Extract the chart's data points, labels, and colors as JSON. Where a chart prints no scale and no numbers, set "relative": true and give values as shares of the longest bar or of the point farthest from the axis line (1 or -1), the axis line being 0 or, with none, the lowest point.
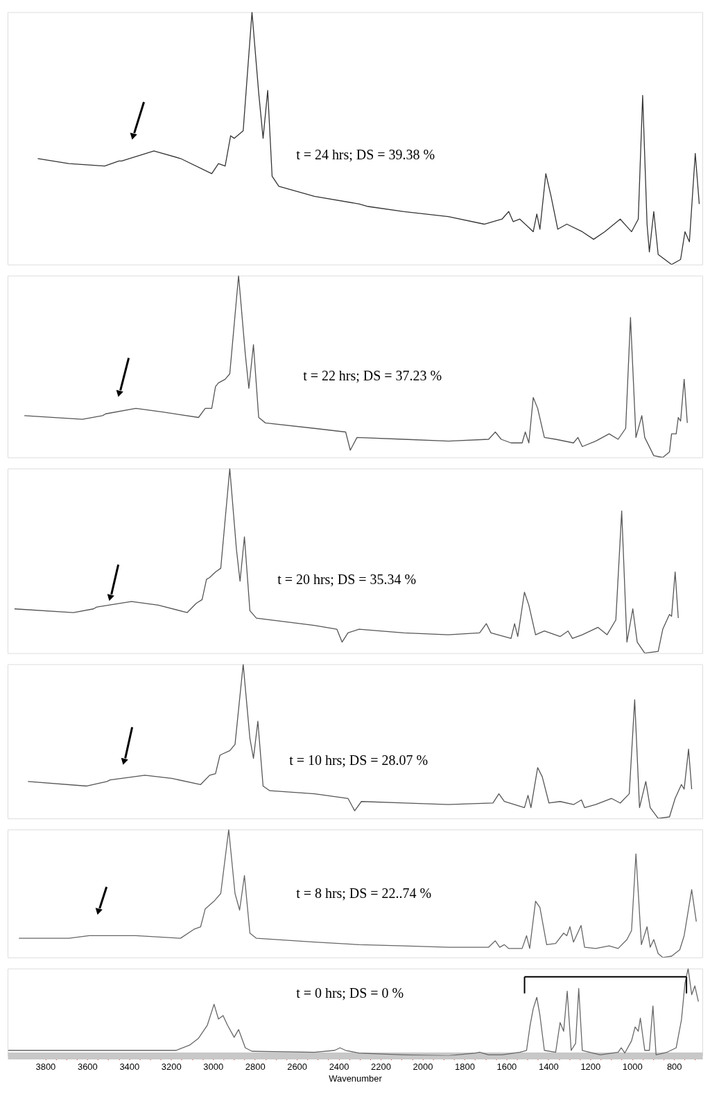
{
  "chart_data": [
    {
      "type": "line",
      "relative": true,
      "xlim": [
        3980,
        665
      ],
      "tick_labels": false,
      "annotations": [
        "t = 24 hrs; DS = 39.38 %"
      ],
      "x": [
        3836,
        3687,
        3517,
        3449,
        3436,
        3282,
        3155,
        3006,
        2974,
        2942,
        2916,
        2899,
        2856,
        2814,
        2782,
        2761,
        2739,
        2718,
        2686,
        2516,
        2303,
        2260,
        2090,
        1877,
        1706,
        1621,
        1589,
        1568,
        1536,
        1472,
        1455,
        1440,
        1412,
        1387,
        1355,
        1312,
        1238,
        1184,
        1131,
        1057,
        1025,
        1003,
        971,
        950,
        929,
        918,
        897,
        876,
        812,
        769,
        748,
        727,
        699,
        680
      ],
      "series": [
        {
          "color": "#333333",
          "values": [
            0.42,
            0.4,
            0.39,
            0.41,
            0.41,
            0.45,
            0.42,
            0.36,
            0.4,
            0.39,
            0.51,
            0.5,
            0.53,
            1,
            0.68,
            0.5,
            0.69,
            0.35,
            0.31,
            0.27,
            0.24,
            0.23,
            0.21,
            0.19,
            0.16,
            0.18,
            0.21,
            0.17,
            0.18,
            0.13,
            0.2,
            0.14,
            0.36,
            0.27,
            0.14,
            0.16,
            0.13,
            0.1,
            0.13,
            0.18,
            0.15,
            0.13,
            0.18,
            0.67,
            0.16,
            0.05,
            0.21,
            0.04,
            0,
            0.02,
            0.13,
            0.09,
            0.44,
            0.24
          ]
        }
      ]
    },
    {
      "type": "line",
      "relative": true,
      "xlim": [
        3980,
        665
      ],
      "tick_labels": false,
      "annotations": [
        "t = 22 hrs; DS = 37.23 %"
      ],
      "x": [
        3900,
        3623,
        3527,
        3512,
        3368,
        3240,
        3069,
        3037,
        3006,
        2988,
        2974,
        2942,
        2920,
        2878,
        2846,
        2829,
        2807,
        2782,
        2750,
        2516,
        2367,
        2345,
        2313,
        2090,
        1877,
        1685,
        1653,
        1625,
        1578,
        1525,
        1510,
        1493,
        1472,
        1451,
        1419,
        1365,
        1280,
        1259,
        1238,
        1174,
        1110,
        1067,
        1031,
        1008,
        982,
        954,
        940,
        897,
        854,
        822,
        812,
        790,
        780,
        769,
        752,
        737
      ],
      "series": [
        {
          "color": "#555555",
          "values": [
            0.23,
            0.21,
            0.23,
            0.24,
            0.27,
            0.25,
            0.22,
            0.27,
            0.27,
            0.39,
            0.41,
            0.43,
            0.46,
            1,
            0.57,
            0.38,
            0.62,
            0.22,
            0.19,
            0.16,
            0.14,
            0.04,
            0.11,
            0.1,
            0.09,
            0.1,
            0.14,
            0.1,
            0.08,
            0.08,
            0.14,
            0.08,
            0.33,
            0.27,
            0.11,
            0.1,
            0.08,
            0.11,
            0.06,
            0.09,
            0.13,
            0.1,
            0.16,
            0.77,
            0.11,
            0.23,
            0.11,
            0.01,
            0,
            0.03,
            0.13,
            0.13,
            0.22,
            0.2,
            0.43,
            0.19
          ]
        }
      ]
    },
    {
      "type": "line",
      "relative": true,
      "xlim": [
        3980,
        665
      ],
      "tick_labels": false,
      "annotations": [
        "t = 20 hrs; DS = 35.34 %"
      ],
      "x": [
        3947,
        3666,
        3570,
        3555,
        3389,
        3261,
        3123,
        3080,
        3052,
        3031,
        3016,
        2988,
        2963,
        2920,
        2888,
        2871,
        2850,
        2824,
        2793,
        2516,
        2409,
        2384,
        2356,
        2303,
        2090,
        1877,
        1728,
        1696,
        1674,
        1578,
        1561,
        1546,
        1514,
        1493,
        1461,
        1419,
        1344,
        1306,
        1285,
        1238,
        1163,
        1120,
        1078,
        1050,
        1025,
        997,
        976,
        940,
        876,
        854,
        822,
        812,
        795,
        780
      ],
      "series": [
        {
          "color": "#555555",
          "values": [
            0.24,
            0.22,
            0.24,
            0.25,
            0.28,
            0.26,
            0.22,
            0.27,
            0.29,
            0.4,
            0.41,
            0.44,
            0.46,
            1,
            0.56,
            0.39,
            0.63,
            0.23,
            0.19,
            0.15,
            0.13,
            0.06,
            0.11,
            0.13,
            0.11,
            0.1,
            0.11,
            0.16,
            0.11,
            0.08,
            0.16,
            0.09,
            0.33,
            0.26,
            0.1,
            0.12,
            0.09,
            0.12,
            0.08,
            0.1,
            0.14,
            0.1,
            0.18,
            0.77,
            0.06,
            0.24,
            0.06,
            0,
            0.01,
            0.13,
            0.21,
            0.2,
            0.44,
            0.19
          ]
        }
      ]
    },
    {
      "type": "line",
      "relative": true,
      "xlim": [
        3980,
        665
      ],
      "tick_labels": false,
      "annotations": [
        "t = 10 hrs; DS = 28.07 %"
      ],
      "x": [
        3883,
        3602,
        3506,
        3491,
        3325,
        3197,
        3059,
        3016,
        2988,
        2967,
        2952,
        2920,
        2895,
        2856,
        2824,
        2807,
        2786,
        2761,
        2729,
        2516,
        2356,
        2324,
        2292,
        2090,
        1877,
        1664,
        1636,
        1610,
        1514,
        1497,
        1483,
        1451,
        1429,
        1397,
        1344,
        1280,
        1242,
        1227,
        1174,
        1099,
        1057,
        1014,
        988,
        965,
        935,
        914,
        876,
        822,
        795,
        765,
        752,
        731,
        716
      ],
      "series": [
        {
          "color": "#555555",
          "values": [
            0.24,
            0.21,
            0.24,
            0.25,
            0.28,
            0.26,
            0.22,
            0.28,
            0.29,
            0.41,
            0.42,
            0.44,
            0.48,
            1,
            0.52,
            0.39,
            0.63,
            0.21,
            0.18,
            0.16,
            0.13,
            0.05,
            0.11,
            0.1,
            0.09,
            0.1,
            0.16,
            0.11,
            0.07,
            0.15,
            0.07,
            0.33,
            0.27,
            0.1,
            0.11,
            0.09,
            0.12,
            0.07,
            0.09,
            0.13,
            0.1,
            0.16,
            0.77,
            0.07,
            0.24,
            0.07,
            0,
            0.01,
            0.13,
            0.22,
            0.19,
            0.45,
            0.19
          ]
        }
      ]
    },
    {
      "type": "line",
      "relative": true,
      "xlim": [
        3980,
        665
      ],
      "tick_labels": false,
      "annotations": [
        "t = 8 hrs; DS = 22..74 %"
      ],
      "x": [
        3926,
        3687,
        3591,
        3581,
        3368,
        3155,
        3091,
        3059,
        3037,
        3023,
        2995,
        2963,
        2925,
        2895,
        2873,
        2850,
        2824,
        2793,
        2516,
        2303,
        2090,
        1877,
        1685,
        1653,
        1632,
        1610,
        1589,
        1525,
        1504,
        1489,
        1461,
        1440,
        1408,
        1365,
        1327,
        1312,
        1297,
        1280,
        1244,
        1227,
        1174,
        1110,
        1067,
        1025,
        1003,
        982,
        956,
        929,
        914,
        897,
        876,
        854,
        812,
        773,
        752,
        716,
        694
      ],
      "series": [
        {
          "color": "#666666",
          "values": [
            0.15,
            0.15,
            0.17,
            0.17,
            0.17,
            0.15,
            0.22,
            0.24,
            0.38,
            0.4,
            0.44,
            0.5,
            1,
            0.5,
            0.37,
            0.64,
            0.19,
            0.15,
            0.12,
            0.1,
            0.09,
            0.08,
            0.08,
            0.13,
            0.08,
            0.1,
            0.07,
            0.07,
            0.17,
            0.07,
            0.44,
            0.39,
            0.1,
            0.11,
            0.19,
            0.17,
            0.24,
            0.12,
            0.25,
            0.08,
            0.07,
            0.09,
            0.07,
            0.14,
            0.21,
            0.81,
            0.1,
            0.24,
            0.08,
            0.14,
            0.03,
            0,
            0.01,
            0.06,
            0.17,
            0.53,
            0.28
          ]
        }
      ]
    },
    {
      "type": "line",
      "relative": true,
      "xlim": [
        3980,
        665
      ],
      "tick_labels": "x",
      "xlabel": "Wavenumber",
      "annotations": [
        "t = 0 hrs; DS = 0 %"
      ],
      "xticks": [
        3800,
        {
          "value": 3750,
          "label": null
        },
        {
          "value": 3700,
          "label": null
        },
        {
          "value": 3650,
          "label": null
        },
        3600,
        {
          "value": 3550,
          "label": null
        },
        {
          "value": 3500,
          "label": null
        },
        {
          "value": 3450,
          "label": null
        },
        3400,
        {
          "value": 3350,
          "label": null
        },
        {
          "value": 3300,
          "label": null
        },
        {
          "value": 3250,
          "label": null
        },
        3200,
        {
          "value": 3150,
          "label": null
        },
        {
          "value": 3100,
          "label": null
        },
        {
          "value": 3050,
          "label": null
        },
        3000,
        {
          "value": 2950,
          "label": null
        },
        {
          "value": 2900,
          "label": null
        },
        {
          "value": 2850,
          "label": null
        },
        2800,
        {
          "value": 2750,
          "label": null
        },
        {
          "value": 2700,
          "label": null
        },
        {
          "value": 2650,
          "label": null
        },
        2600,
        {
          "value": 2550,
          "label": null
        },
        {
          "value": 2500,
          "label": null
        },
        {
          "value": 2450,
          "label": null
        },
        2400,
        {
          "value": 2350,
          "label": null
        },
        {
          "value": 2300,
          "label": null
        },
        {
          "value": 2250,
          "label": null
        },
        2200,
        {
          "value": 2150,
          "label": null
        },
        {
          "value": 2100,
          "label": null
        },
        {
          "value": 2050,
          "label": null
        },
        2000,
        {
          "value": 1950,
          "label": null
        },
        {
          "value": 1900,
          "label": null
        },
        {
          "value": 1850,
          "label": null
        },
        1800,
        {
          "value": 1750,
          "label": null
        },
        {
          "value": 1700,
          "label": null
        },
        {
          "value": 1650,
          "label": null
        },
        1600,
        {
          "value": 1550,
          "label": null
        },
        {
          "value": 1500,
          "label": null
        },
        {
          "value": 1450,
          "label": null
        },
        1400,
        {
          "value": 1350,
          "label": null
        },
        {
          "value": 1300,
          "label": null
        },
        {
          "value": 1250,
          "label": null
        },
        1200,
        {
          "value": 1150,
          "label": null
        },
        {
          "value": 1100,
          "label": null
        },
        {
          "value": 1050,
          "label": null
        },
        1000,
        {
          "value": 950,
          "label": null
        },
        {
          "value": 900,
          "label": null
        },
        {
          "value": 850,
          "label": null
        },
        800,
        {
          "value": 750,
          "label": null
        },
        {
          "value": 700,
          "label": null
        }
      ],
      "x": [
        3977,
        3581,
        3176,
        3112,
        3069,
        3027,
        2995,
        2974,
        2952,
        2931,
        2899,
        2878,
        2846,
        2814,
        2516,
        2420,
        2394,
        2367,
        2303,
        2090,
        1877,
        1749,
        1728,
        1685,
        1621,
        1536,
        1504,
        1487,
        1472,
        1455,
        1440,
        1419,
        1365,
        1344,
        1327,
        1310,
        1291,
        1270,
        1255,
        1238,
        1152,
        1067,
        1052,
        1035,
        1003,
        986,
        971,
        961,
        940,
        918,
        901,
        886,
        833,
        790,
        765,
        748,
        733,
        716,
        701,
        684
      ],
      "series": [
        {
          "color": "#666666",
          "values": [
            0.06,
            0.06,
            0.06,
            0.12,
            0.2,
            0.35,
            0.59,
            0.42,
            0.46,
            0.35,
            0.21,
            0.3,
            0.09,
            0.05,
            0.04,
            0.06,
            0.09,
            0.06,
            0.03,
            0.01,
            0,
            0.03,
            0.04,
            0.01,
            0.01,
            0.04,
            0.06,
            0.35,
            0.54,
            0.67,
            0.46,
            0.06,
            0.04,
            0.38,
            0.28,
            0.74,
            0.06,
            0.14,
            0.77,
            0.06,
            0.01,
            0.04,
            0.09,
            0.03,
            0.17,
            0.33,
            0.28,
            0.43,
            0.06,
            0.06,
            0.57,
            0.01,
            0.04,
            0.09,
            0.41,
            0.83,
            1,
            0.7,
            0.8,
            0.62
          ]
        }
      ]
    }
  ]
}
